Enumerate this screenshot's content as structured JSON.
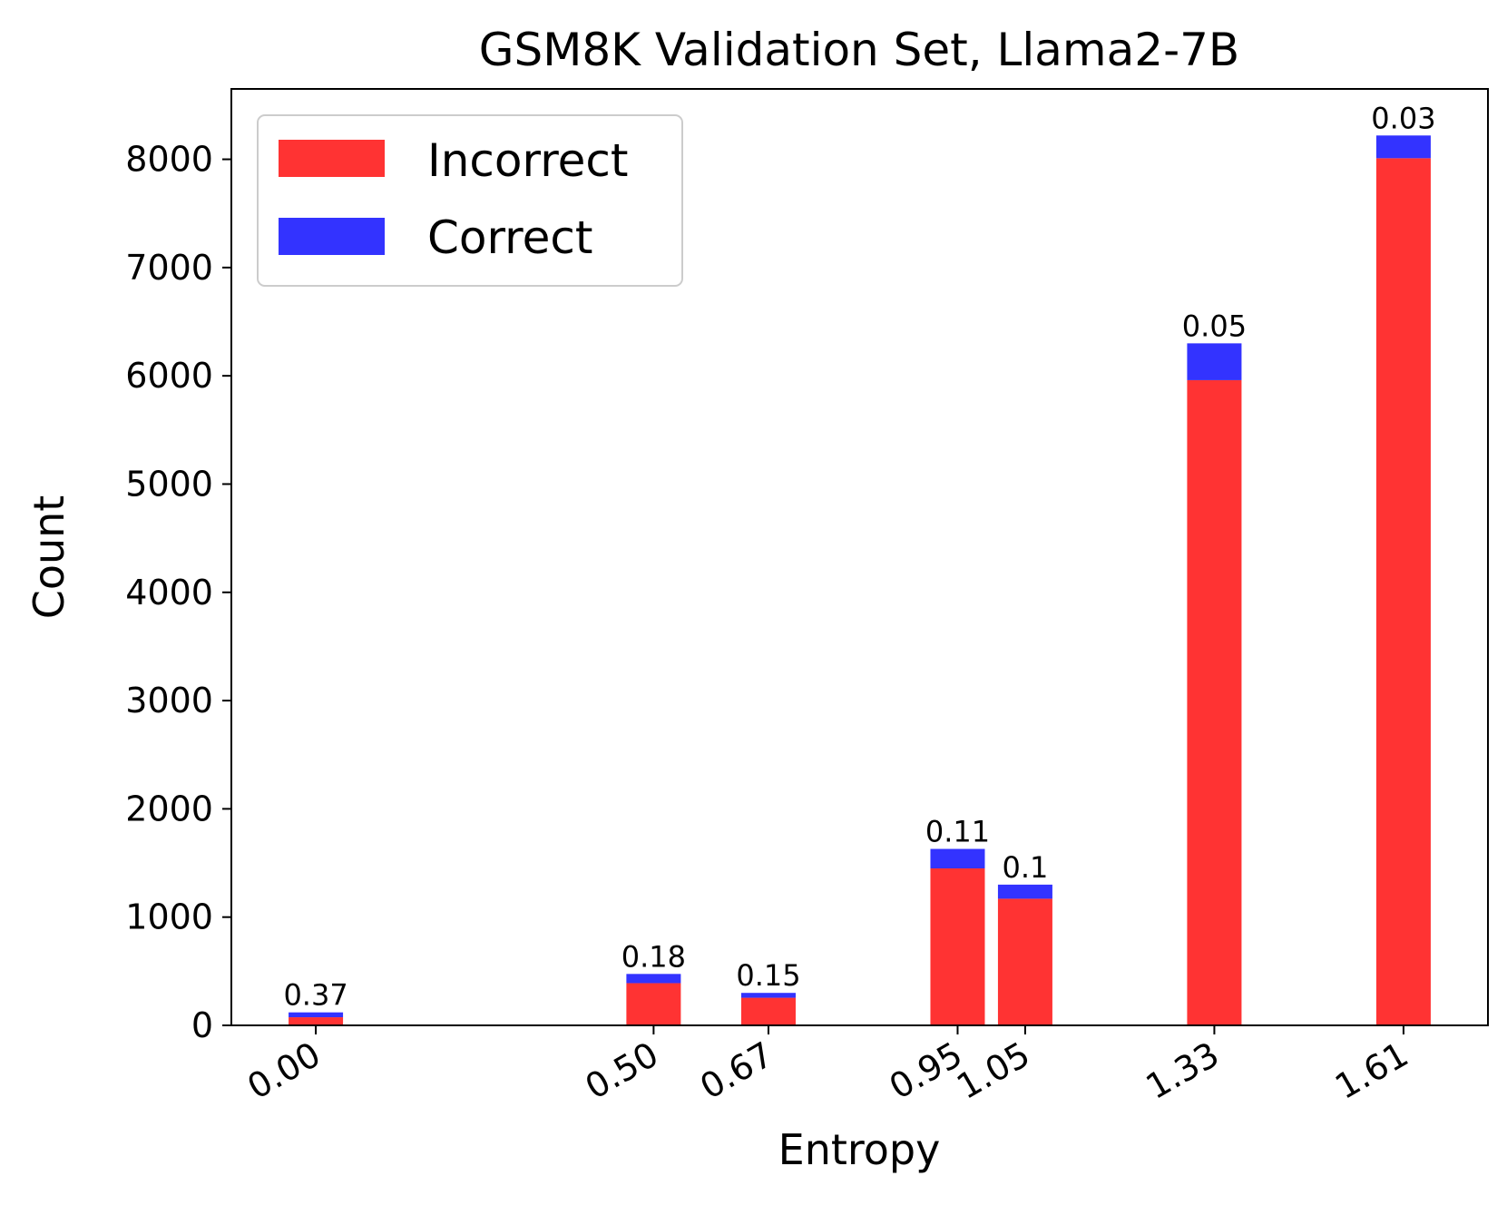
{
  "chart_data": {
    "type": "bar",
    "stacked": true,
    "title": "GSM8K Validation Set, Llama2-7B",
    "xlabel": "Entropy",
    "ylabel": "Count",
    "x_numeric": [
      0.0,
      0.5,
      0.67,
      0.95,
      1.05,
      1.33,
      1.61
    ],
    "categories": [
      "0.00",
      "0.50",
      "0.67",
      "0.95",
      "1.05",
      "1.33",
      "1.61"
    ],
    "xlim": [
      -0.125,
      1.735
    ],
    "ylim": [
      0,
      8650
    ],
    "yticks": [
      0,
      1000,
      2000,
      3000,
      4000,
      5000,
      6000,
      7000,
      8000
    ],
    "series": [
      {
        "name": "Incorrect",
        "color": "#ff3333",
        "values": [
          75,
          390,
          255,
          1450,
          1170,
          5960,
          8010
        ]
      },
      {
        "name": "Correct",
        "color": "#3333ff",
        "values": [
          45,
          85,
          45,
          180,
          130,
          340,
          210
        ]
      }
    ],
    "data_labels": [
      "0.37",
      "0.18",
      "0.15",
      "0.11",
      "0.1",
      "0.05",
      "0.03"
    ],
    "legend": {
      "placement": "top-left",
      "entries": [
        "Incorrect",
        "Correct"
      ]
    },
    "grid": false
  }
}
